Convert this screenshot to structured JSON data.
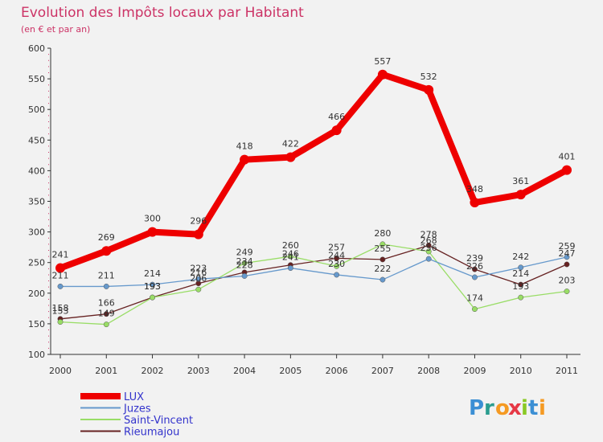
{
  "chart_data": {
    "type": "line",
    "title": "Evolution des Impôts locaux par Habitant",
    "subtitle": "(en € et par an)",
    "xlabel": "",
    "ylabel": "",
    "ylim": [
      100,
      600
    ],
    "yticks": [
      100,
      150,
      200,
      250,
      300,
      350,
      400,
      450,
      500,
      550,
      600
    ],
    "categories": [
      "2000",
      "2001",
      "2002",
      "2003",
      "2004",
      "2005",
      "2006",
      "2007",
      "2008",
      "2009",
      "2010",
      "2011"
    ],
    "series": [
      {
        "name": "LUX",
        "color": "#ee0000",
        "values": [
          241,
          269,
          300,
          296,
          418,
          422,
          466,
          557,
          532,
          348,
          361,
          401
        ]
      },
      {
        "name": "Juzes",
        "color": "#6699cc",
        "values": [
          211,
          211,
          214,
          223,
          228,
          241,
          230,
          222,
          256,
          226,
          242,
          259
        ]
      },
      {
        "name": "Saint-Vincent",
        "color": "#99dd66",
        "values": [
          153,
          149,
          193,
          206,
          249,
          260,
          244,
          280,
          268,
          174,
          193,
          203
        ]
      },
      {
        "name": "Rieumajou",
        "color": "#662222",
        "values": [
          158,
          166,
          193,
          216,
          234,
          246,
          257,
          255,
          278,
          239,
          214,
          247
        ]
      }
    ],
    "legend_position": "bottom-left",
    "grid": false
  },
  "branding": {
    "logo_text": "Proxiti",
    "colors": {
      "title": "#cc3366",
      "axis": "#333333",
      "legend_text": "#3333cc",
      "background": "#f2f2f2"
    }
  }
}
